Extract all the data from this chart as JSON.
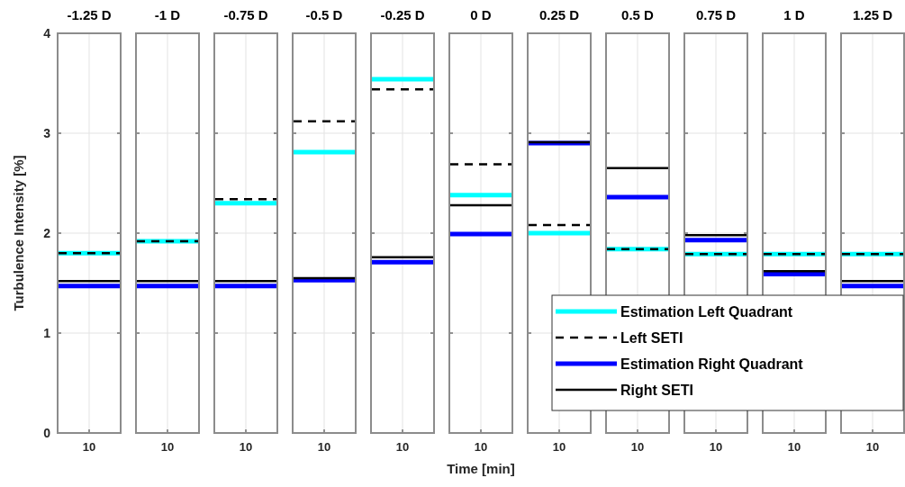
{
  "chart_data": [
    {
      "type": "line",
      "title": "-1.25 D",
      "ylabel": "Turbulence Intensity [%]",
      "categories": [
        "10"
      ],
      "ylim": [
        0,
        4
      ],
      "yticks": [
        0,
        1,
        2,
        3,
        4
      ],
      "grid": true,
      "legend": false,
      "ref_lines": [
        {
          "axis": "y",
          "value": 1.8,
          "color": "#00ffff"
        },
        {
          "axis": "y",
          "value": 1.8,
          "color": "#000000",
          "line_style": "dashed"
        },
        {
          "axis": "y",
          "value": 1.47,
          "color": "#0000ff"
        },
        {
          "axis": "y",
          "value": 1.52,
          "color": "#000000"
        }
      ]
    },
    {
      "type": "line",
      "title": "-1 D",
      "categories": [
        "10"
      ],
      "ylim": [
        0,
        4
      ],
      "yticks": [
        0,
        1,
        2,
        3,
        4
      ],
      "grid": true,
      "legend": false,
      "tick_labels": "x",
      "ref_lines": [
        {
          "axis": "y",
          "value": 1.92,
          "color": "#00ffff"
        },
        {
          "axis": "y",
          "value": 1.92,
          "color": "#000000",
          "line_style": "dashed"
        },
        {
          "axis": "y",
          "value": 1.47,
          "color": "#0000ff"
        },
        {
          "axis": "y",
          "value": 1.52,
          "color": "#000000"
        }
      ]
    },
    {
      "type": "line",
      "title": "-0.75 D",
      "categories": [
        "10"
      ],
      "ylim": [
        0,
        4
      ],
      "yticks": [
        0,
        1,
        2,
        3,
        4
      ],
      "grid": true,
      "legend": false,
      "tick_labels": "x",
      "ref_lines": [
        {
          "axis": "y",
          "value": 2.3,
          "color": "#00ffff"
        },
        {
          "axis": "y",
          "value": 2.34,
          "color": "#000000",
          "line_style": "dashed"
        },
        {
          "axis": "y",
          "value": 1.47,
          "color": "#0000ff"
        },
        {
          "axis": "y",
          "value": 1.52,
          "color": "#000000"
        }
      ]
    },
    {
      "type": "line",
      "title": "-0.5 D",
      "categories": [
        "10"
      ],
      "ylim": [
        0,
        4
      ],
      "yticks": [
        0,
        1,
        2,
        3,
        4
      ],
      "grid": true,
      "legend": false,
      "tick_labels": "x",
      "ref_lines": [
        {
          "axis": "y",
          "value": 2.81,
          "color": "#00ffff"
        },
        {
          "axis": "y",
          "value": 3.12,
          "color": "#000000",
          "line_style": "dashed"
        },
        {
          "axis": "y",
          "value": 1.53,
          "color": "#0000ff"
        },
        {
          "axis": "y",
          "value": 1.55,
          "color": "#000000"
        }
      ]
    },
    {
      "type": "line",
      "title": "-0.25 D",
      "categories": [
        "10"
      ],
      "ylim": [
        0,
        4
      ],
      "yticks": [
        0,
        1,
        2,
        3,
        4
      ],
      "grid": true,
      "legend": false,
      "tick_labels": "x",
      "ref_lines": [
        {
          "axis": "y",
          "value": 3.54,
          "color": "#00ffff"
        },
        {
          "axis": "y",
          "value": 3.44,
          "color": "#000000",
          "line_style": "dashed"
        },
        {
          "axis": "y",
          "value": 1.71,
          "color": "#0000ff"
        },
        {
          "axis": "y",
          "value": 1.76,
          "color": "#000000"
        }
      ]
    },
    {
      "type": "line",
      "title": "0 D",
      "xlabel": "Time [min]",
      "categories": [
        "10"
      ],
      "ylim": [
        0,
        4
      ],
      "yticks": [
        0,
        1,
        2,
        3,
        4
      ],
      "grid": true,
      "legend": false,
      "tick_labels": "x",
      "ref_lines": [
        {
          "axis": "y",
          "value": 2.38,
          "color": "#00ffff"
        },
        {
          "axis": "y",
          "value": 2.69,
          "color": "#000000",
          "line_style": "dashed"
        },
        {
          "axis": "y",
          "value": 1.99,
          "color": "#0000ff"
        },
        {
          "axis": "y",
          "value": 2.28,
          "color": "#000000"
        }
      ]
    },
    {
      "type": "line",
      "title": "0.25 D",
      "categories": [
        "10"
      ],
      "ylim": [
        0,
        4
      ],
      "yticks": [
        0,
        1,
        2,
        3,
        4
      ],
      "grid": true,
      "legend": false,
      "tick_labels": "x",
      "ref_lines": [
        {
          "axis": "y",
          "value": 2.0,
          "color": "#00ffff"
        },
        {
          "axis": "y",
          "value": 2.08,
          "color": "#000000",
          "line_style": "dashed"
        },
        {
          "axis": "y",
          "value": 2.9,
          "color": "#0000ff"
        },
        {
          "axis": "y",
          "value": 2.91,
          "color": "#000000"
        }
      ]
    },
    {
      "type": "line",
      "title": "0.5 D",
      "categories": [
        "10"
      ],
      "ylim": [
        0,
        4
      ],
      "yticks": [
        0,
        1,
        2,
        3,
        4
      ],
      "grid": true,
      "legend": false,
      "tick_labels": "x",
      "ref_lines": [
        {
          "axis": "y",
          "value": 1.84,
          "color": "#00ffff"
        },
        {
          "axis": "y",
          "value": 1.84,
          "color": "#000000",
          "line_style": "dashed"
        },
        {
          "axis": "y",
          "value": 2.36,
          "color": "#0000ff"
        },
        {
          "axis": "y",
          "value": 2.65,
          "color": "#000000"
        }
      ]
    },
    {
      "type": "line",
      "title": "0.75 D",
      "categories": [
        "10"
      ],
      "ylim": [
        0,
        4
      ],
      "yticks": [
        0,
        1,
        2,
        3,
        4
      ],
      "grid": true,
      "legend": false,
      "tick_labels": "x",
      "ref_lines": [
        {
          "axis": "y",
          "value": 1.79,
          "color": "#00ffff"
        },
        {
          "axis": "y",
          "value": 1.79,
          "color": "#000000",
          "line_style": "dashed"
        },
        {
          "axis": "y",
          "value": 1.93,
          "color": "#0000ff"
        },
        {
          "axis": "y",
          "value": 1.98,
          "color": "#000000"
        }
      ]
    },
    {
      "type": "line",
      "title": "1 D",
      "categories": [
        "10"
      ],
      "ylim": [
        0,
        4
      ],
      "yticks": [
        0,
        1,
        2,
        3,
        4
      ],
      "grid": true,
      "legend": false,
      "tick_labels": "x",
      "ref_lines": [
        {
          "axis": "y",
          "value": 1.79,
          "color": "#00ffff"
        },
        {
          "axis": "y",
          "value": 1.79,
          "color": "#000000",
          "line_style": "dashed"
        },
        {
          "axis": "y",
          "value": 1.59,
          "color": "#0000ff"
        },
        {
          "axis": "y",
          "value": 1.62,
          "color": "#000000"
        }
      ]
    },
    {
      "type": "line",
      "title": "1.25 D",
      "categories": [
        "10"
      ],
      "ylim": [
        0,
        4
      ],
      "yticks": [
        0,
        1,
        2,
        3,
        4
      ],
      "grid": true,
      "legend": "bottom left",
      "tick_labels": "x",
      "ref_lines": [
        {
          "axis": "y",
          "value": 1.79,
          "color": "#00ffff",
          "label": "Estimation Left Quadrant"
        },
        {
          "axis": "y",
          "value": 1.79,
          "color": "#000000",
          "line_style": "dashed",
          "label": "Left SETI"
        },
        {
          "axis": "y",
          "value": 1.47,
          "color": "#0000ff",
          "label": "Estimation Right Quadrant"
        },
        {
          "axis": "y",
          "value": 1.52,
          "color": "#000000",
          "label": "Right SETI"
        }
      ]
    }
  ]
}
